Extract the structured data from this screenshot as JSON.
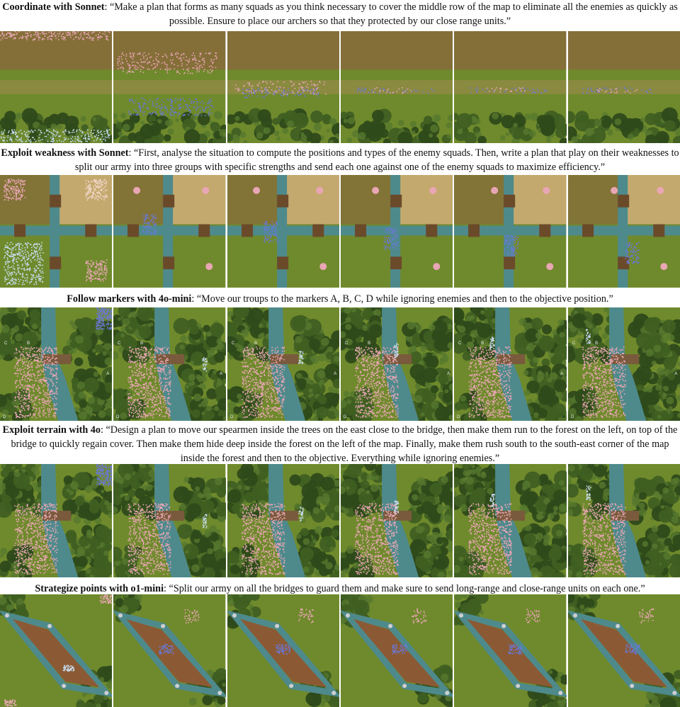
{
  "rows": [
    {
      "id": "coordinate",
      "title": "Coordinate with Sonnet",
      "quote": "“Make a plan that forms as many squads as you think necessary to cover the middle row of the map to eliminate all the enemies as quickly as possible. Ensure to place our archers so that they protected by our close range units.”",
      "frames": 6
    },
    {
      "id": "exploit-weakness",
      "title": "Exploit weakness with Sonnet",
      "quote": "“First, analyse the situation to compute the positions and types of the enemy squads. Then, write a plan that play on their weaknesses to split our army into three groups with specific strengths and send each one against one of the enemy squads to maximize efficiency.”",
      "frames": 6
    },
    {
      "id": "follow-markers",
      "title": "Follow markers with 4o-mini",
      "quote": "“Move our troups to the markers A, B, C, D while ignoring enemies and then to the  objective position.”",
      "frames": 6,
      "markers": [
        "C",
        "B",
        "A",
        "D"
      ]
    },
    {
      "id": "exploit-terrain",
      "title": "Exploit terrain with 4o",
      "quote": "“Design a plan to move our spearmen inside the trees on the east close to the bridge, then make them run to the forest on the left,  on top of the bridge to quickly regain cover. Then make them hide deep inside the forest on the left  of the map. Finally, make them rush south to the south-east corner of the map inside the forest and then to the objective. Everything while ignoring enemies.”",
      "frames": 6
    },
    {
      "id": "strategize-points",
      "title": "Strategize points with o1-mini",
      "quote": "“Split our army on all the bridges to guard them and make sure to send long-range and close-range units on each one.”",
      "frames": 6
    }
  ],
  "colors": {
    "grass": "#6f8a2c",
    "dirt": "#8a6a3c",
    "water": "#4e8a8c",
    "forest": "#2f4a1c",
    "enemy": "#e9a6b4",
    "ally": "#6a78d6",
    "ally_light": "#c8dcf0"
  }
}
